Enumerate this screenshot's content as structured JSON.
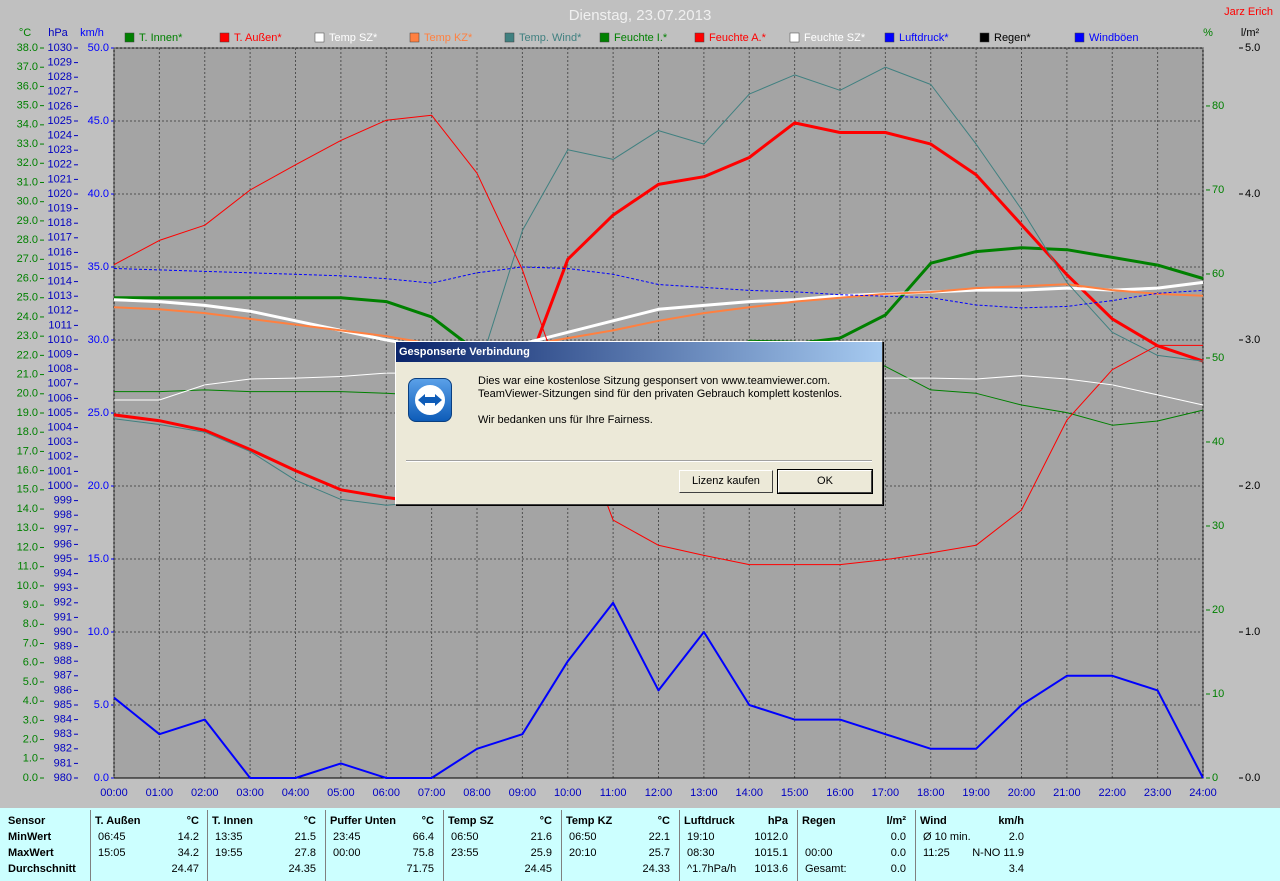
{
  "chart_data": {
    "type": "line",
    "title": "Dienstag, 23.07.2013",
    "corner_label": "Jarz Erich",
    "ylabel": "°C",
    "y2label": "%",
    "y3label": "hPa",
    "y4label": "km/h",
    "y5label": "l/m²",
    "x": [
      0,
      1,
      2,
      3,
      4,
      5,
      6,
      7,
      8,
      9,
      10,
      11,
      12,
      13,
      14,
      15,
      16,
      17,
      18,
      19,
      20,
      21,
      22,
      23,
      24
    ],
    "xlim": [
      0,
      24
    ],
    "xticks": [
      {
        "value": 0,
        "label": "00:00"
      },
      {
        "value": 1,
        "label": "01:00"
      },
      {
        "value": 2,
        "label": "02:00"
      },
      {
        "value": 3,
        "label": "03:00"
      },
      {
        "value": 4,
        "label": "04:00"
      },
      {
        "value": 5,
        "label": "05:00"
      },
      {
        "value": 6,
        "label": "06:00"
      },
      {
        "value": 7,
        "label": "07:00"
      },
      {
        "value": 8,
        "label": "08:00"
      },
      {
        "value": 9,
        "label": "09:00"
      },
      {
        "value": 10,
        "label": "10:00"
      },
      {
        "value": 11,
        "label": "11:00"
      },
      {
        "value": 12,
        "label": "12:00"
      },
      {
        "value": 13,
        "label": "13:00"
      },
      {
        "value": 14,
        "label": "14:00"
      },
      {
        "value": 15,
        "label": "15:00"
      },
      {
        "value": 16,
        "label": "16:00"
      },
      {
        "value": 17,
        "label": "17:00"
      },
      {
        "value": 18,
        "label": "18:00"
      },
      {
        "value": 19,
        "label": "19:00"
      },
      {
        "value": 20,
        "label": "20:00"
      },
      {
        "value": 21,
        "label": "21:00"
      },
      {
        "value": 22,
        "label": "22:00"
      },
      {
        "value": 23,
        "label": "23:00"
      },
      {
        "value": 24,
        "label": "24:00"
      }
    ],
    "ylim": [
      0,
      38
    ],
    "yticks": [
      {
        "value": 0,
        "label": "0.0"
      },
      {
        "value": 1,
        "label": "1.0"
      },
      {
        "value": 2,
        "label": "2.0"
      },
      {
        "value": 3,
        "label": "3.0"
      },
      {
        "value": 4,
        "label": "4.0"
      },
      {
        "value": 5,
        "label": "5.0"
      },
      {
        "value": 6,
        "label": "6.0"
      },
      {
        "value": 7,
        "label": "7.0"
      },
      {
        "value": 8,
        "label": "8.0"
      },
      {
        "value": 9,
        "label": "9.0"
      },
      {
        "value": 10,
        "label": "10.0"
      },
      {
        "value": 11,
        "label": "11.0"
      },
      {
        "value": 12,
        "label": "12.0"
      },
      {
        "value": 13,
        "label": "13.0"
      },
      {
        "value": 14,
        "label": "14.0"
      },
      {
        "value": 15,
        "label": "15.0"
      },
      {
        "value": 16,
        "label": "16.0"
      },
      {
        "value": 17,
        "label": "17.0"
      },
      {
        "value": 18,
        "label": "18.0"
      },
      {
        "value": 19,
        "label": "19.0"
      },
      {
        "value": 20,
        "label": "20.0"
      },
      {
        "value": 21,
        "label": "21.0"
      },
      {
        "value": 22,
        "label": "22.0"
      },
      {
        "value": 23,
        "label": "23.0"
      },
      {
        "value": 24,
        "label": "24.0"
      },
      {
        "value": 25,
        "label": "25.0"
      },
      {
        "value": 26,
        "label": "26.0"
      },
      {
        "value": 27,
        "label": "27.0"
      },
      {
        "value": 28,
        "label": "28.0"
      },
      {
        "value": 29,
        "label": "29.0"
      },
      {
        "value": 30,
        "label": "30.0"
      },
      {
        "value": 31,
        "label": "31.0"
      },
      {
        "value": 32,
        "label": "32.0"
      },
      {
        "value": 33,
        "label": "33.0"
      },
      {
        "value": 34,
        "label": "34.0"
      },
      {
        "value": 35,
        "label": "35.0"
      },
      {
        "value": 36,
        "label": "36.0"
      },
      {
        "value": 37,
        "label": "37.0"
      },
      {
        "value": 38,
        "label": "38.0"
      }
    ],
    "y2lim": [
      0,
      86.9
    ],
    "y2ticks": [
      0,
      10,
      20,
      30,
      40,
      50,
      60,
      70,
      80
    ],
    "y3lim": [
      980,
      1030
    ],
    "y3ticks": [
      980,
      981,
      982,
      983,
      984,
      985,
      986,
      987,
      988,
      989,
      990,
      991,
      992,
      993,
      994,
      995,
      996,
      997,
      998,
      999,
      1000,
      1001,
      1002,
      1003,
      1004,
      1005,
      1006,
      1007,
      1008,
      1009,
      1010,
      1011,
      1012,
      1013,
      1014,
      1015,
      1016,
      1017,
      1018,
      1019,
      1020,
      1021,
      1022,
      1023,
      1024,
      1025,
      1026,
      1027,
      1028,
      1029,
      1030
    ],
    "y4lim": [
      0,
      50
    ],
    "y4ticks": [
      {
        "value": 0,
        "label": "0.0"
      },
      {
        "value": 5,
        "label": "5.0"
      },
      {
        "value": 10,
        "label": "10.0"
      },
      {
        "value": 15,
        "label": "15.0"
      },
      {
        "value": 20,
        "label": "20.0"
      },
      {
        "value": 25,
        "label": "25.0"
      },
      {
        "value": 30,
        "label": "30.0"
      },
      {
        "value": 35,
        "label": "35.0"
      },
      {
        "value": 40,
        "label": "40.0"
      },
      {
        "value": 45,
        "label": "45.0"
      },
      {
        "value": 50,
        "label": "50.0"
      }
    ],
    "y5lim": [
      0,
      5
    ],
    "y5ticks": [
      {
        "value": 0,
        "label": "0.0"
      },
      {
        "value": 1,
        "label": "1.0"
      },
      {
        "value": 2,
        "label": "2.0"
      },
      {
        "value": 3,
        "label": "3.0"
      },
      {
        "value": 4,
        "label": "4.0"
      },
      {
        "value": 5,
        "label": "5.0"
      }
    ],
    "grid": true,
    "series": [
      {
        "name": "T. Innen*",
        "color": "#008000",
        "line_width": 3,
        "axis": "y",
        "values": [
          25.0,
          25.0,
          25.0,
          25.0,
          25.0,
          25.0,
          24.8,
          24.0,
          22.2,
          22.0,
          21.8,
          21.9,
          22.0,
          21.7,
          21.8,
          22.6,
          22.9,
          24.1,
          26.8,
          27.4,
          27.6,
          27.5,
          27.1,
          26.7,
          26.0
        ]
      },
      {
        "name": "T. Außen*",
        "color": "#ff0000",
        "line_width": 3,
        "axis": "y",
        "values": [
          18.9,
          18.6,
          18.1,
          17.1,
          16.0,
          15.0,
          14.6,
          14.3,
          15.5,
          20.7,
          27.0,
          29.3,
          30.9,
          31.3,
          32.3,
          34.1,
          33.6,
          33.6,
          33.0,
          31.4,
          28.8,
          26.2,
          23.9,
          22.5,
          21.7
        ]
      },
      {
        "name": "Temp SZ*",
        "color": "#ffffff",
        "line_width": 3,
        "axis": "y",
        "values": [
          24.9,
          24.8,
          24.6,
          24.3,
          23.8,
          23.3,
          22.8,
          22.4,
          22.1,
          22.6,
          23.2,
          23.8,
          24.4,
          24.6,
          24.8,
          24.9,
          25.1,
          25.2,
          25.3,
          25.4,
          25.4,
          25.5,
          25.4,
          25.5,
          25.8
        ]
      },
      {
        "name": "Temp KZ*",
        "color": "#ff8040",
        "line_width": 2,
        "axis": "y",
        "values": [
          24.5,
          24.4,
          24.2,
          23.9,
          23.6,
          23.3,
          23.0,
          22.6,
          22.3,
          22.5,
          22.9,
          23.3,
          23.8,
          24.2,
          24.5,
          24.8,
          25.0,
          25.2,
          25.3,
          25.5,
          25.6,
          25.7,
          25.4,
          25.2,
          25.1
        ]
      },
      {
        "name": "Temp. Wind*",
        "color": "#408080",
        "line_width": 1,
        "axis": "y",
        "values": [
          18.7,
          18.4,
          18.0,
          17.0,
          15.5,
          14.5,
          14.2,
          14.4,
          21.0,
          28.5,
          32.7,
          32.2,
          33.7,
          33.0,
          35.6,
          36.6,
          35.8,
          37.0,
          36.1,
          33.0,
          29.6,
          25.8,
          23.2,
          22.0,
          21.7
        ]
      },
      {
        "name": "Feuchte I.*",
        "color": "#008000",
        "line_width": 1,
        "axis": "y2",
        "values": [
          46.0,
          46.0,
          46.2,
          46.0,
          46.0,
          46.0,
          45.8,
          45.5,
          45.0,
          44.5,
          44.0,
          44.5,
          45.0,
          49.0,
          52.1,
          52.0,
          51.0,
          49.0,
          46.2,
          45.8,
          44.4,
          43.5,
          42.0,
          42.5,
          43.8
        ]
      },
      {
        "name": "Feuchte A.*",
        "color": "#ff0000",
        "line_width": 1,
        "axis": "y2",
        "values": [
          61.1,
          64.0,
          65.8,
          70.0,
          73.0,
          75.9,
          78.3,
          78.9,
          72.0,
          60.5,
          45.0,
          30.7,
          27.7,
          26.5,
          25.4,
          25.4,
          25.4,
          26.0,
          26.8,
          27.7,
          31.9,
          42.6,
          48.6,
          51.5,
          51.5
        ]
      },
      {
        "name": "Feuchte SZ*",
        "color": "#ffffff",
        "line_width": 1,
        "axis": "y2",
        "values": [
          45.0,
          45.0,
          46.8,
          47.5,
          47.6,
          47.8,
          48.2,
          48.2,
          48.0,
          47.5,
          47.0,
          47.0,
          47.2,
          47.3,
          47.5,
          47.5,
          47.6,
          47.6,
          47.6,
          47.5,
          47.9,
          47.5,
          46.8,
          45.6,
          44.4
        ]
      },
      {
        "name": "Luftdruck*",
        "color": "#0000ff",
        "line_width": 1,
        "style": "dashed",
        "axis": "y3",
        "values": [
          1014.9,
          1014.8,
          1014.7,
          1014.6,
          1014.5,
          1014.4,
          1014.2,
          1013.9,
          1014.6,
          1015.0,
          1014.9,
          1014.5,
          1013.8,
          1013.6,
          1013.4,
          1013.3,
          1013.1,
          1013.0,
          1012.9,
          1012.4,
          1012.2,
          1012.3,
          1012.7,
          1013.2,
          1013.4
        ]
      },
      {
        "name": "Regen*",
        "color": "#000000",
        "line_width": 1,
        "axis": "y5",
        "values": [
          0,
          0,
          0,
          0,
          0,
          0,
          0,
          0,
          0,
          0,
          0,
          0,
          0,
          0,
          0,
          0,
          0,
          0,
          0,
          0,
          0,
          0,
          0,
          0,
          0
        ]
      },
      {
        "name": "Windböen",
        "color": "#0000ff",
        "line_width": 2,
        "axis": "y4",
        "values": [
          5.5,
          3.0,
          4.0,
          0.0,
          0.0,
          1.0,
          0.0,
          0.0,
          2.0,
          3.0,
          8.0,
          12.0,
          6.0,
          10.0,
          5.0,
          4.0,
          4.0,
          3.0,
          2.0,
          2.0,
          5.0,
          7.0,
          7.0,
          6.0,
          0.0
        ]
      }
    ]
  },
  "dialog": {
    "title": "Gesponserte Verbindung",
    "lines": [
      "Dies war eine kostenlose Sitzung gesponsert von www.teamviewer.com.",
      "TeamViewer-Sitzungen sind für den privaten Gebrauch komplett kostenlos.",
      "Wir bedanken uns für Ihre Fairness."
    ],
    "buttons": [
      "Lizenz kaufen",
      "OK"
    ]
  },
  "table": {
    "row_labels": [
      "Sensor",
      "MinWert",
      "MaxWert",
      "Durchschnitt"
    ],
    "groups": [
      {
        "name": "T. Außen",
        "unit": "°C",
        "rows": [
          {
            "time": "06:45",
            "value": "14.2"
          },
          {
            "time": "15:05",
            "value": "34.2"
          },
          {
            "value": "24.47"
          }
        ]
      },
      {
        "name": "T. Innen",
        "unit": "°C",
        "rows": [
          {
            "time": "13:35",
            "value": "21.5"
          },
          {
            "time": "19:55",
            "value": "27.8"
          },
          {
            "value": "24.35"
          }
        ]
      },
      {
        "name": "Puffer Unten",
        "unit": "°C",
        "rows": [
          {
            "time": "23:45",
            "value": "66.4"
          },
          {
            "time": "00:00",
            "value": "75.8"
          },
          {
            "value": "71.75"
          }
        ]
      },
      {
        "name": "Temp SZ",
        "unit": "°C",
        "rows": [
          {
            "time": "06:50",
            "value": "21.6"
          },
          {
            "time": "23:55",
            "value": "25.9"
          },
          {
            "value": "24.45"
          }
        ]
      },
      {
        "name": "Temp KZ",
        "unit": "°C",
        "rows": [
          {
            "time": "06:50",
            "value": "22.1"
          },
          {
            "time": "20:10",
            "value": "25.7"
          },
          {
            "value": "24.33"
          }
        ]
      },
      {
        "name": "Luftdruck",
        "unit": "hPa",
        "rows": [
          {
            "time": "19:10",
            "value": "1012.0"
          },
          {
            "time": "08:30",
            "value": "1015.1"
          },
          {
            "time": "^1.7hPa/h",
            "value": "1013.6"
          }
        ]
      },
      {
        "name": "Regen",
        "unit": "l/m²",
        "rows": [
          {
            "value": "0.0"
          },
          {
            "time": "00:00",
            "value": "0.0"
          },
          {
            "time": "Gesamt:",
            "value": "0.0"
          }
        ]
      },
      {
        "name": "Wind",
        "unit": "km/h",
        "rows": [
          {
            "time": "Ø 10 min.",
            "value": "2.0"
          },
          {
            "time": "11:25",
            "value": "N-NO 11.9"
          },
          {
            "value": "3.4"
          }
        ]
      }
    ]
  }
}
